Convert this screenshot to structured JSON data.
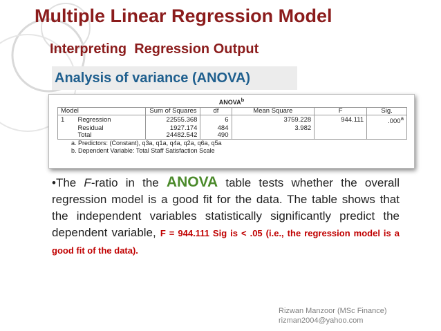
{
  "slide": {
    "title": "Multiple Linear Regression Model",
    "subtitle": "Interpreting  Regression Output",
    "section": "Analysis of variance (ANOVA)",
    "anova_table": {
      "caption": "ANOVA",
      "caption_note": "b",
      "headers": [
        "Model",
        "Sum of Squares",
        "df",
        "Mean Square",
        "F",
        "Sig."
      ],
      "rows": [
        {
          "model": "1",
          "label": "Regression",
          "sum_of_squares": "22555.368",
          "df": "6",
          "mean_square": "3759.228",
          "f": "944.111",
          "sig": ".000",
          "sig_note": "a"
        },
        {
          "label": "Residual",
          "sum_of_squares": "1927.174",
          "df": "484",
          "mean_square": "3.982"
        },
        {
          "label": "Total",
          "sum_of_squares": "24482.542",
          "df": "490"
        }
      ],
      "footnotes": [
        "a. Predictors: (Constant), q3a, q1a, q4a, q2a, q6a, q5a",
        "b. Dependent Variable: Total Staff Satisfaction Scale"
      ]
    },
    "paragraph": [
      "•The ",
      "F",
      "-ratio in the ",
      "ANOVA",
      " table tests whether the overall regression model is a good fit for the data. The table shows that the independent variables statistically significantly predict the dependent variable, ",
      "F = 944.111 Sig is < .05 (i.e., the regression model is a good fit of the data)."
    ],
    "credit": {
      "author": "Rizwan Manzoor (MSc Finance)",
      "email": "rizman2004@yahoo.com"
    }
  }
}
